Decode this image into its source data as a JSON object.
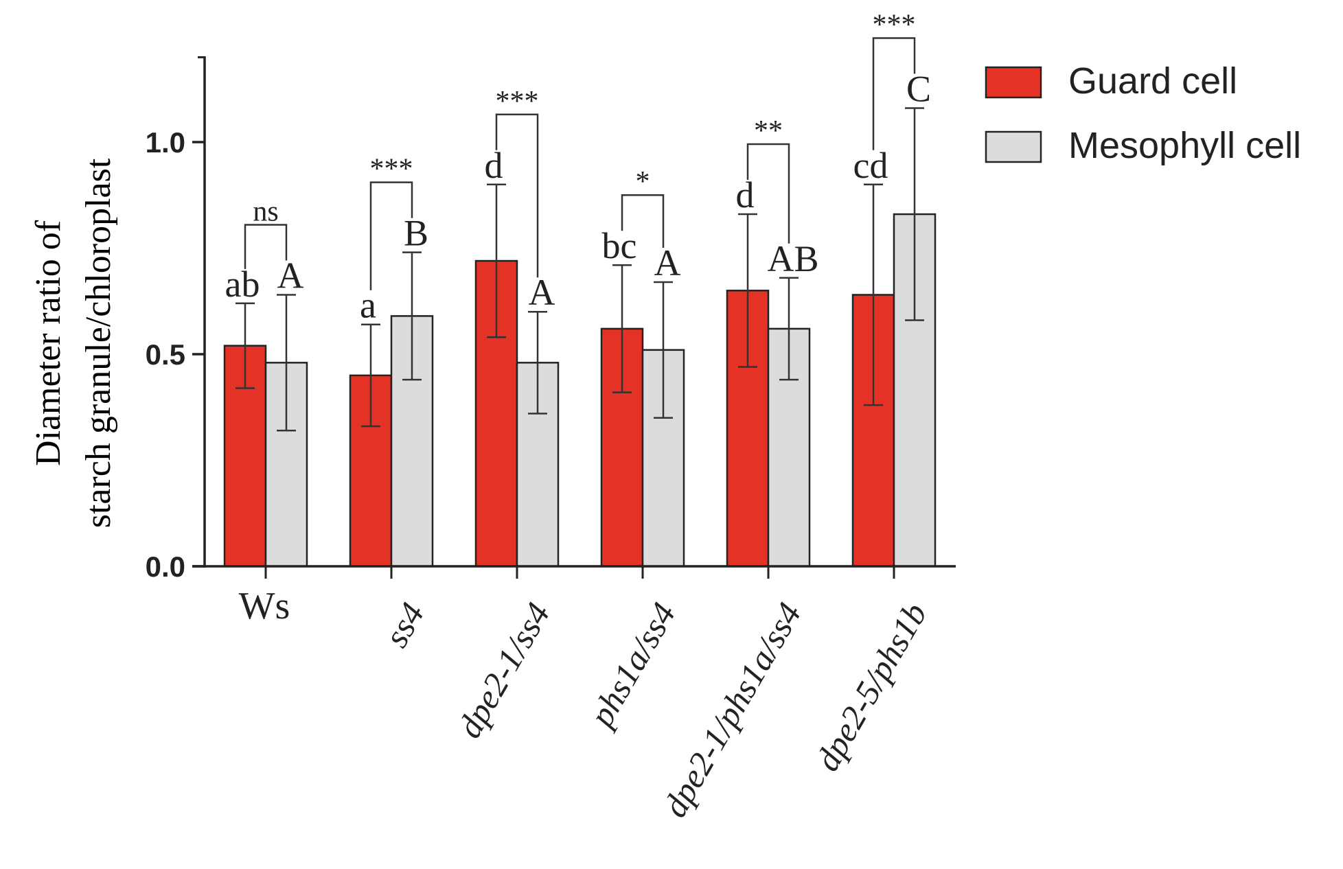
{
  "chart_data": {
    "type": "bar",
    "ylabel_lines": [
      "Diameter ratio of",
      "starch granule/chloroplast"
    ],
    "ylim": [
      0,
      1.2
    ],
    "yticks": [
      {
        "value": 0.0,
        "label": "0.0"
      },
      {
        "value": 0.5,
        "label": "0.5"
      },
      {
        "value": 1.0,
        "label": "1.0"
      }
    ],
    "categories": [
      {
        "label": "Ws",
        "italic": false
      },
      {
        "label": "ss4",
        "italic": true
      },
      {
        "label": "dpe2-1/ss4",
        "italic": true
      },
      {
        "label": "phs1a/ss4",
        "italic": true
      },
      {
        "label": "dpe2-1/phs1a/ss4",
        "italic": true
      },
      {
        "label": "dpe2-5/phs1b",
        "italic": true
      }
    ],
    "series": [
      {
        "name": "Guard cell",
        "color": "#e53227",
        "values": [
          0.52,
          0.45,
          0.72,
          0.56,
          0.65,
          0.64
        ],
        "error": [
          0.1,
          0.12,
          0.18,
          0.15,
          0.18,
          0.26
        ],
        "letters": [
          "ab",
          "a",
          "d",
          "bc",
          "d",
          "cd"
        ]
      },
      {
        "name": "Mesophyll cell",
        "color": "#dcdcdc",
        "values": [
          0.48,
          0.59,
          0.48,
          0.51,
          0.56,
          0.83
        ],
        "error": [
          0.16,
          0.15,
          0.12,
          0.16,
          0.12,
          0.25
        ],
        "letters": [
          "A",
          "B",
          "A",
          "A",
          "AB",
          "C"
        ]
      }
    ],
    "significance": [
      "ns",
      "***",
      "***",
      "*",
      "**",
      "***"
    ],
    "legend": {
      "position": "top-right"
    },
    "grid": false
  }
}
